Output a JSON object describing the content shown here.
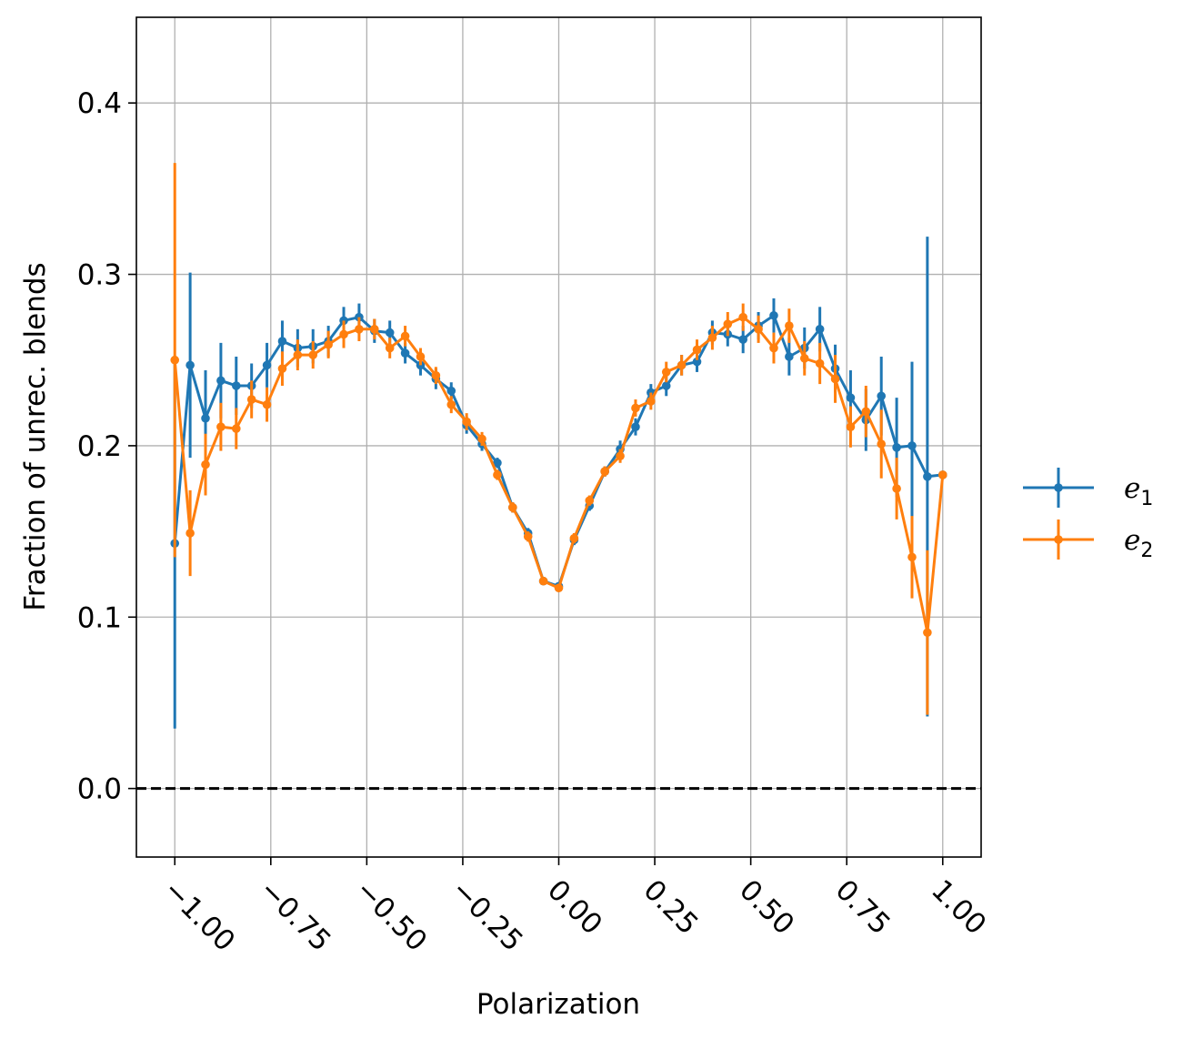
{
  "chart_data": {
    "type": "line",
    "title": "",
    "xlabel": "Polarization",
    "ylabel": "Fraction of unrec. blends",
    "xlim": [
      -1.1,
      1.1
    ],
    "ylim": [
      -0.04,
      0.45
    ],
    "xticks": [
      -1.0,
      -0.75,
      -0.5,
      -0.25,
      0.0,
      0.25,
      0.5,
      0.75,
      1.0
    ],
    "xtick_labels": [
      "−1.00",
      "−0.75",
      "−0.50",
      "−0.25",
      "0.00",
      "0.25",
      "0.50",
      "0.75",
      "1.00"
    ],
    "yticks": [
      0.0,
      0.1,
      0.2,
      0.3,
      0.4
    ],
    "ytick_labels": [
      "0.0",
      "0.1",
      "0.2",
      "0.3",
      "0.4"
    ],
    "grid": true,
    "reference_line": {
      "y": 0.0,
      "style": "dashed",
      "color": "#000000"
    },
    "legend_position": "outside-right",
    "series": [
      {
        "name": "e",
        "subscript": "1",
        "color": "#1f77b4",
        "x": [
          -1.0,
          -0.96,
          -0.92,
          -0.88,
          -0.84,
          -0.8,
          -0.76,
          -0.72,
          -0.68,
          -0.64,
          -0.6,
          -0.56,
          -0.52,
          -0.48,
          -0.44,
          -0.4,
          -0.36,
          -0.32,
          -0.28,
          -0.24,
          -0.2,
          -0.16,
          -0.12,
          -0.08,
          -0.04,
          0.0,
          0.04,
          0.08,
          0.12,
          0.16,
          0.2,
          0.24,
          0.28,
          0.32,
          0.36,
          0.4,
          0.44,
          0.48,
          0.52,
          0.56,
          0.6,
          0.64,
          0.68,
          0.72,
          0.76,
          0.8,
          0.84,
          0.88,
          0.92,
          0.96,
          1.0
        ],
        "values": [
          0.143,
          0.247,
          0.216,
          0.238,
          0.235,
          0.235,
          0.247,
          0.261,
          0.257,
          0.258,
          0.261,
          0.273,
          0.275,
          0.267,
          0.266,
          0.254,
          0.247,
          0.239,
          0.232,
          0.212,
          0.201,
          0.19,
          0.164,
          0.149,
          0.121,
          0.118,
          0.145,
          0.165,
          0.185,
          0.198,
          0.211,
          0.231,
          0.235,
          0.247,
          0.249,
          0.266,
          0.265,
          0.262,
          0.27,
          0.276,
          0.252,
          0.257,
          0.268,
          0.245,
          0.228,
          0.215,
          0.229,
          0.199,
          0.2,
          0.182,
          0.183
        ],
        "errors": [
          0.108,
          0.054,
          0.028,
          0.022,
          0.017,
          0.013,
          0.013,
          0.012,
          0.011,
          0.01,
          0.009,
          0.008,
          0.008,
          0.007,
          0.007,
          0.006,
          0.006,
          0.006,
          0.005,
          0.005,
          0.004,
          0.003,
          0.003,
          0.003,
          0.002,
          0.002,
          0.003,
          0.003,
          0.003,
          0.005,
          0.005,
          0.005,
          0.006,
          0.006,
          0.006,
          0.007,
          0.007,
          0.008,
          0.008,
          0.01,
          0.011,
          0.012,
          0.013,
          0.014,
          0.016,
          0.018,
          0.023,
          0.029,
          0.049,
          0.14,
          0.0
        ]
      },
      {
        "name": "e",
        "subscript": "2",
        "color": "#ff7f0e",
        "x": [
          -1.0,
          -0.96,
          -0.92,
          -0.88,
          -0.84,
          -0.8,
          -0.76,
          -0.72,
          -0.68,
          -0.64,
          -0.6,
          -0.56,
          -0.52,
          -0.48,
          -0.44,
          -0.4,
          -0.36,
          -0.32,
          -0.28,
          -0.24,
          -0.2,
          -0.16,
          -0.12,
          -0.08,
          -0.04,
          0.0,
          0.04,
          0.08,
          0.12,
          0.16,
          0.2,
          0.24,
          0.28,
          0.32,
          0.36,
          0.4,
          0.44,
          0.48,
          0.52,
          0.56,
          0.6,
          0.64,
          0.68,
          0.72,
          0.76,
          0.8,
          0.84,
          0.88,
          0.92,
          0.96,
          1.0
        ],
        "values": [
          0.25,
          0.149,
          0.189,
          0.211,
          0.21,
          0.227,
          0.224,
          0.245,
          0.253,
          0.253,
          0.259,
          0.265,
          0.268,
          0.268,
          0.257,
          0.264,
          0.252,
          0.241,
          0.224,
          0.214,
          0.204,
          0.183,
          0.164,
          0.147,
          0.121,
          0.117,
          0.146,
          0.168,
          0.185,
          0.194,
          0.222,
          0.226,
          0.243,
          0.247,
          0.256,
          0.263,
          0.271,
          0.275,
          0.268,
          0.257,
          0.27,
          0.251,
          0.248,
          0.239,
          0.211,
          0.22,
          0.201,
          0.175,
          0.135,
          0.091,
          0.183
        ],
        "errors": [
          0.115,
          0.025,
          0.018,
          0.014,
          0.012,
          0.011,
          0.01,
          0.01,
          0.009,
          0.008,
          0.008,
          0.008,
          0.007,
          0.006,
          0.006,
          0.006,
          0.005,
          0.005,
          0.005,
          0.005,
          0.004,
          0.003,
          0.003,
          0.003,
          0.002,
          0.002,
          0.003,
          0.003,
          0.003,
          0.004,
          0.005,
          0.005,
          0.006,
          0.006,
          0.006,
          0.007,
          0.007,
          0.008,
          0.008,
          0.009,
          0.01,
          0.01,
          0.012,
          0.014,
          0.012,
          0.015,
          0.02,
          0.018,
          0.024,
          0.048,
          0.0
        ]
      }
    ]
  }
}
